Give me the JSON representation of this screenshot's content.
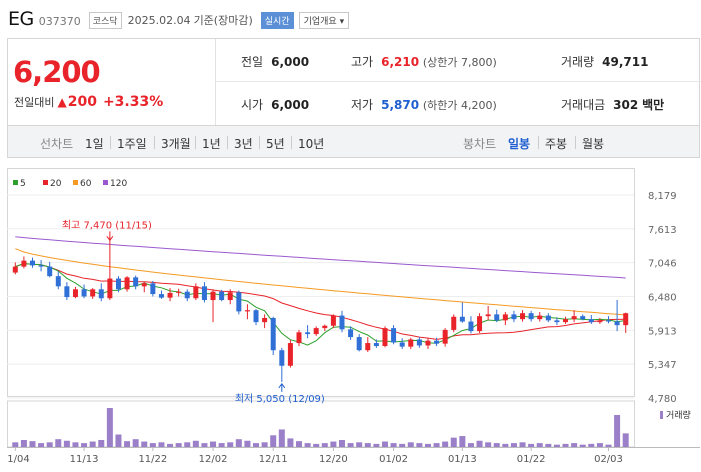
{
  "header": {
    "name": "EG",
    "code": "037370",
    "market": "코스닥",
    "date": "2025.02.04",
    "basis": "기준(장마감)",
    "realtime": "실시간",
    "company": "기업개요"
  },
  "price": {
    "current": "6,200",
    "change_label": "전일대비",
    "arrow": "▲",
    "change": "200",
    "pct": "+3.33%"
  },
  "stats": {
    "prev": {
      "label": "전일",
      "value": "6,000"
    },
    "high": {
      "label": "고가",
      "value": "6,210",
      "sub": "(상한가 7,800)"
    },
    "volume": {
      "label": "거래량",
      "value": "49,711"
    },
    "open": {
      "label": "시가",
      "value": "6,000"
    },
    "low": {
      "label": "저가",
      "value": "5,870",
      "sub": "(하한가 4,200)"
    },
    "amount": {
      "label": "거래대금",
      "value": "302",
      "unit": "백만"
    }
  },
  "toolbar": {
    "line_title": "선차트",
    "line_tabs": [
      "1일",
      "1주일",
      "3개월",
      "1년",
      "3년",
      "5년",
      "10년"
    ],
    "bar_title": "봉차트",
    "bar_tabs": [
      "일봉",
      "주봉",
      "월봉"
    ],
    "active_bar": "일봉"
  },
  "chart_data": {
    "type": "candlestick",
    "legend": [
      {
        "name": "5",
        "color": "#2ca02c"
      },
      {
        "name": "20",
        "color": "#e8232a"
      },
      {
        "name": "60",
        "color": "#f59a23"
      },
      {
        "name": "120",
        "color": "#9b59d0"
      }
    ],
    "y_ticks": [
      8179,
      7613,
      7046,
      6480,
      5913,
      5347,
      4780
    ],
    "ylim": [
      4780,
      8179
    ],
    "x_labels": [
      "11/04",
      "11/13",
      "11/22",
      "12/02",
      "12/11",
      "12/20",
      "01/02",
      "01/13",
      "01/22",
      "02/03"
    ],
    "annot_high": "최고 7,470 (11/15)",
    "annot_low": "최저 5,050 (12/09)",
    "volume_label": "거래량",
    "candles": [
      [
        6880,
        7050,
        6850,
        6980
      ],
      [
        6980,
        7150,
        6950,
        7080
      ],
      [
        7080,
        7130,
        6960,
        7000
      ],
      [
        7000,
        7090,
        6900,
        6980
      ],
      [
        6980,
        7060,
        6800,
        6820
      ],
      [
        6820,
        6900,
        6600,
        6650
      ],
      [
        6650,
        6720,
        6420,
        6470
      ],
      [
        6470,
        6640,
        6450,
        6600
      ],
      [
        6600,
        6680,
        6450,
        6480
      ],
      [
        6480,
        6620,
        6440,
        6600
      ],
      [
        6600,
        6700,
        6400,
        6450
      ],
      [
        6450,
        7470,
        6420,
        6780
      ],
      [
        6780,
        6820,
        6550,
        6600
      ],
      [
        6600,
        6820,
        6560,
        6800
      ],
      [
        6800,
        6830,
        6600,
        6650
      ],
      [
        6650,
        6730,
        6550,
        6700
      ],
      [
        6700,
        6740,
        6480,
        6520
      ],
      [
        6520,
        6580,
        6440,
        6460
      ],
      [
        6460,
        6620,
        6400,
        6540
      ],
      [
        6540,
        6610,
        6480,
        6560
      ],
      [
        6560,
        6600,
        6400,
        6450
      ],
      [
        6450,
        6700,
        6420,
        6650
      ],
      [
        6650,
        6720,
        6380,
        6420
      ],
      [
        6420,
        6600,
        6050,
        6560
      ],
      [
        6560,
        6590,
        6400,
        6420
      ],
      [
        6420,
        6600,
        6350,
        6550
      ],
      [
        6550,
        6580,
        6180,
        6230
      ],
      [
        6230,
        6350,
        6100,
        6250
      ],
      [
        6250,
        6270,
        6000,
        6050
      ],
      [
        6050,
        6180,
        5950,
        6120
      ],
      [
        6120,
        6140,
        5500,
        5580
      ],
      [
        5580,
        5620,
        5050,
        5320
      ],
      [
        5320,
        5750,
        5290,
        5700
      ],
      [
        5700,
        5920,
        5650,
        5880
      ],
      [
        5880,
        6000,
        5780,
        5850
      ],
      [
        5850,
        5980,
        5820,
        5950
      ],
      [
        5950,
        6010,
        5900,
        5990
      ],
      [
        5990,
        6180,
        5950,
        6160
      ],
      [
        6160,
        6240,
        5880,
        5930
      ],
      [
        5930,
        5980,
        5750,
        5800
      ],
      [
        5800,
        5850,
        5560,
        5580
      ],
      [
        5580,
        5800,
        5550,
        5700
      ],
      [
        5700,
        5760,
        5620,
        5650
      ],
      [
        5650,
        5980,
        5630,
        5950
      ],
      [
        5950,
        6000,
        5680,
        5710
      ],
      [
        5710,
        5780,
        5600,
        5640
      ],
      [
        5640,
        5790,
        5600,
        5760
      ],
      [
        5760,
        5800,
        5620,
        5660
      ],
      [
        5660,
        5780,
        5600,
        5740
      ],
      [
        5740,
        5790,
        5650,
        5690
      ],
      [
        5690,
        5950,
        5640,
        5920
      ],
      [
        5920,
        6180,
        5880,
        6140
      ],
      [
        6140,
        6380,
        6040,
        6060
      ],
      [
        6060,
        6150,
        5860,
        5900
      ],
      [
        5900,
        6200,
        5870,
        6150
      ],
      [
        6150,
        6320,
        6080,
        6180
      ],
      [
        6180,
        6260,
        6050,
        6080
      ],
      [
        6080,
        6220,
        6000,
        6180
      ],
      [
        6180,
        6240,
        6050,
        6100
      ],
      [
        6100,
        6250,
        6060,
        6200
      ],
      [
        6200,
        6240,
        6060,
        6100
      ],
      [
        6100,
        6220,
        6060,
        6160
      ],
      [
        6160,
        6200,
        6050,
        6080
      ],
      [
        6080,
        6130,
        6000,
        6050
      ],
      [
        6050,
        6140,
        6020,
        6100
      ],
      [
        6100,
        6250,
        6050,
        6150
      ],
      [
        6150,
        6180,
        6080,
        6100
      ],
      [
        6100,
        6170,
        6020,
        6050
      ],
      [
        6050,
        6120,
        6020,
        6080
      ],
      [
        6080,
        6150,
        6030,
        6060
      ],
      [
        6060,
        6420,
        5900,
        6000
      ],
      [
        6000,
        6210,
        5870,
        6200
      ]
    ],
    "volume": [
      0.12,
      0.18,
      0.15,
      0.1,
      0.12,
      0.2,
      0.16,
      0.12,
      0.1,
      0.14,
      0.18,
      1.0,
      0.32,
      0.15,
      0.2,
      0.14,
      0.1,
      0.12,
      0.08,
      0.1,
      0.12,
      0.16,
      0.1,
      0.14,
      0.1,
      0.12,
      0.2,
      0.16,
      0.1,
      0.12,
      0.3,
      0.45,
      0.22,
      0.15,
      0.1,
      0.08,
      0.1,
      0.14,
      0.18,
      0.1,
      0.12,
      0.1,
      0.08,
      0.14,
      0.1,
      0.08,
      0.12,
      0.1,
      0.08,
      0.1,
      0.14,
      0.24,
      0.28,
      0.1,
      0.16,
      0.12,
      0.1,
      0.08,
      0.1,
      0.12,
      0.08,
      0.1,
      0.08,
      0.06,
      0.08,
      0.1,
      0.06,
      0.08,
      0.1,
      0.06,
      0.82,
      0.35
    ]
  }
}
